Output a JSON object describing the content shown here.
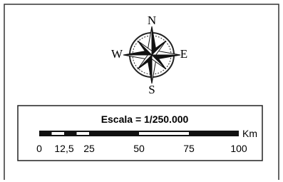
{
  "compass": {
    "north": "N",
    "west": "W",
    "east": "E",
    "south": "S"
  },
  "scale": {
    "title": "Escala = 1/250.000",
    "unit": "Km",
    "ticks": [
      0,
      {
        "value": 12.5,
        "label": "12,5"
      },
      25,
      50,
      75,
      100
    ]
  }
}
